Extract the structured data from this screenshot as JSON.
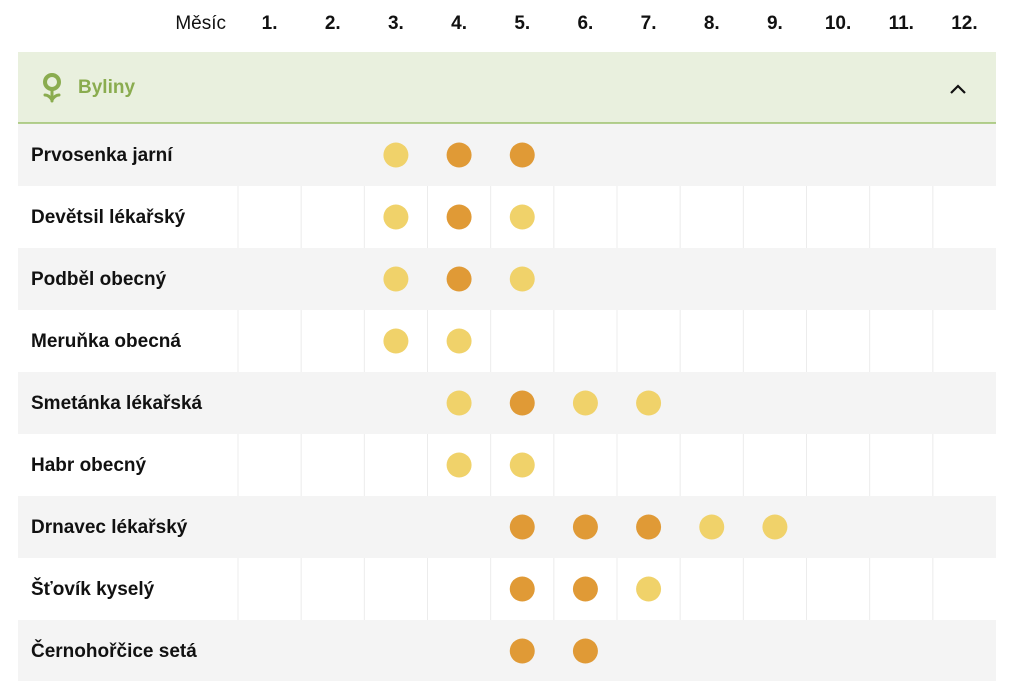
{
  "header": {
    "label": "Měsíc",
    "months": [
      "1.",
      "2.",
      "3.",
      "4.",
      "5.",
      "6.",
      "7.",
      "8.",
      "9.",
      "10.",
      "11.",
      "12."
    ]
  },
  "section": {
    "title": "Byliny",
    "color": "#8aac4f",
    "background": "#e9f0de",
    "border": "#9cbf6c",
    "rows": [
      {
        "name": "Prvosenka jarní",
        "cells": [
          null,
          null,
          "#f0d26a",
          "#e09a36",
          "#e09a36",
          null,
          null,
          null,
          null,
          null,
          null,
          null
        ]
      },
      {
        "name": "Devětsil lékařský",
        "cells": [
          null,
          null,
          "#f0d26a",
          "#e09a36",
          "#f0d26a",
          null,
          null,
          null,
          null,
          null,
          null,
          null
        ]
      },
      {
        "name": "Podběl obecný",
        "cells": [
          null,
          null,
          "#f0d26a",
          "#e09a36",
          "#f0d26a",
          null,
          null,
          null,
          null,
          null,
          null,
          null
        ]
      },
      {
        "name": "Meruňka obecná",
        "cells": [
          null,
          null,
          "#f0d26a",
          "#f0d26a",
          null,
          null,
          null,
          null,
          null,
          null,
          null,
          null
        ]
      },
      {
        "name": "Smetánka lékařská",
        "cells": [
          null,
          null,
          null,
          "#f0d26a",
          "#e09a36",
          "#f0d26a",
          "#f0d26a",
          null,
          null,
          null,
          null,
          null
        ]
      },
      {
        "name": "Habr obecný",
        "cells": [
          null,
          null,
          null,
          "#f0d26a",
          "#f0d26a",
          null,
          null,
          null,
          null,
          null,
          null,
          null
        ]
      },
      {
        "name": "Drnavec lékařský",
        "cells": [
          null,
          null,
          null,
          null,
          "#e09a36",
          "#e09a36",
          "#e09a36",
          "#f0d26a",
          "#f0d26a",
          null,
          null,
          null
        ]
      },
      {
        "name": "Šťovík kyselý",
        "cells": [
          null,
          null,
          null,
          null,
          "#e09a36",
          "#e09a36",
          "#f0d26a",
          null,
          null,
          null,
          null,
          null
        ]
      },
      {
        "name": "Černohořčice setá",
        "cells": [
          null,
          null,
          null,
          null,
          "#e09a36",
          "#e09a36",
          null,
          null,
          null,
          null,
          null,
          null
        ]
      }
    ]
  }
}
